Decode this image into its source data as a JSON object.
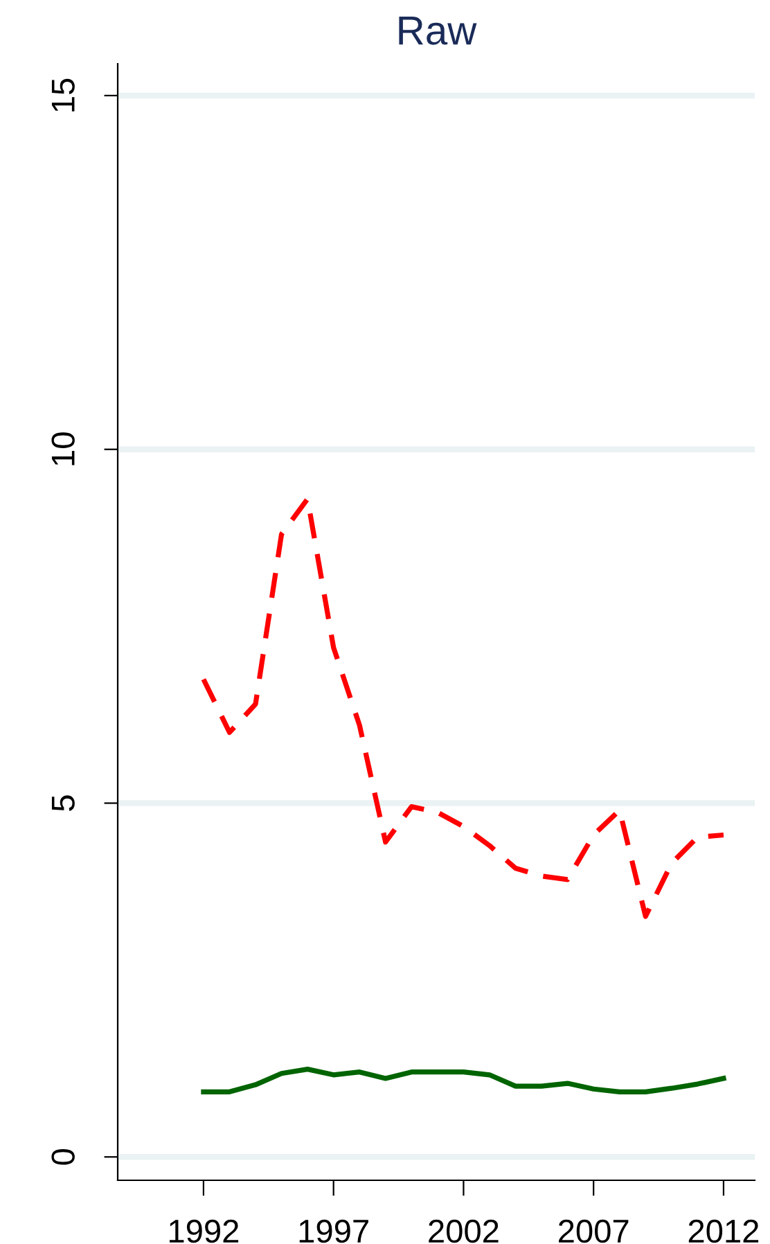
{
  "chart_data": {
    "type": "line",
    "title": "Raw",
    "x": [
      1992,
      1993,
      1994,
      1995,
      1996,
      1997,
      1998,
      1999,
      2000,
      2001,
      2002,
      2003,
      2004,
      2005,
      2006,
      2007,
      2008,
      2009,
      2010,
      2011,
      2012
    ],
    "series": [
      {
        "color": "#ff0000",
        "line_style": "dashed",
        "values": [
          6.75,
          6.0,
          6.4,
          8.8,
          9.3,
          7.2,
          6.1,
          4.45,
          4.95,
          4.87,
          4.67,
          4.4,
          4.08,
          3.97,
          3.92,
          4.55,
          4.9,
          3.4,
          4.15,
          4.52,
          4.55
        ]
      },
      {
        "color": "#006400",
        "line_style": "solid",
        "values": [
          0.92,
          0.92,
          1.02,
          1.18,
          1.24,
          1.16,
          1.2,
          1.11,
          1.2,
          1.2,
          1.2,
          1.16,
          1.0,
          1.0,
          1.04,
          0.96,
          0.92,
          0.92,
          0.97,
          1.03,
          1.11
        ]
      }
    ],
    "xlim": [
      1988.7,
      2013.2
    ],
    "xticks": [
      1992,
      1997,
      2002,
      2007,
      2012
    ],
    "ylim": [
      -0.33,
      15.45
    ],
    "yticks": [
      0,
      5,
      10,
      15
    ],
    "grid": "y",
    "legend": false
  }
}
